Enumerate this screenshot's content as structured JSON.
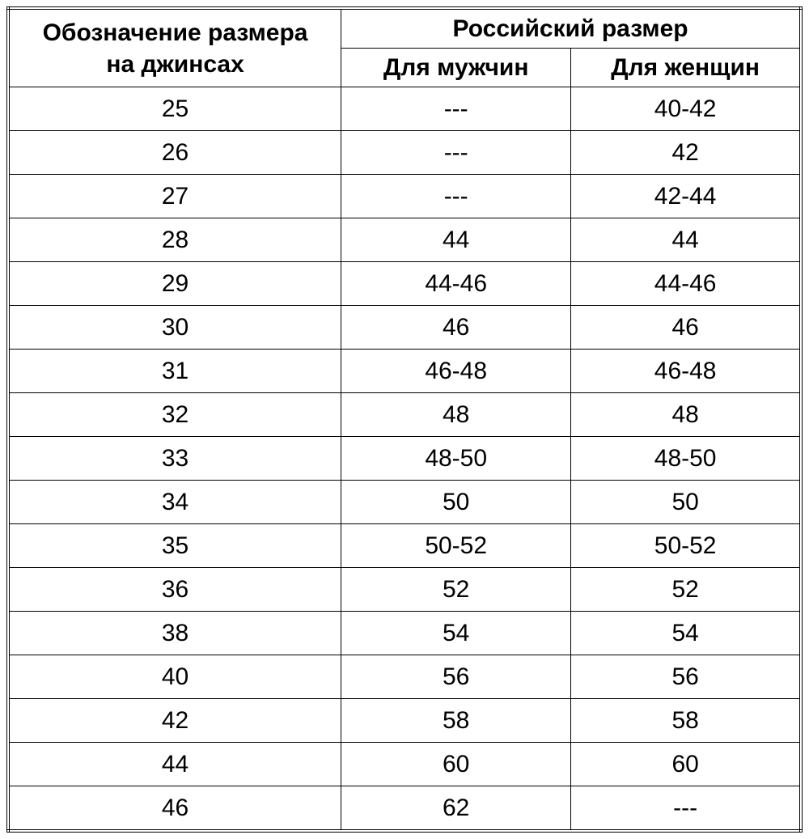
{
  "table": {
    "type": "table",
    "background_color": "#ffffff",
    "border_color": "#000000",
    "text_color": "#000000",
    "header_font_size_pt": 30,
    "cell_font_size_pt": 30,
    "font_family": "Comic Sans MS",
    "column_widths_percent": [
      42,
      29,
      29
    ],
    "text_align": "center",
    "headers": {
      "col1_line1": "Обозначение размера",
      "col1_line2": "на джинсах",
      "col_group": "Российский размер",
      "col2": "Для мужчин",
      "col3": "Для женщин"
    },
    "rows": [
      {
        "jeans": "25",
        "men": "---",
        "women": "40-42"
      },
      {
        "jeans": "26",
        "men": "---",
        "women": "42"
      },
      {
        "jeans": "27",
        "men": "---",
        "women": "42-44"
      },
      {
        "jeans": "28",
        "men": "44",
        "women": "44"
      },
      {
        "jeans": "29",
        "men": "44-46",
        "women": "44-46"
      },
      {
        "jeans": "30",
        "men": "46",
        "women": "46"
      },
      {
        "jeans": "31",
        "men": "46-48",
        "women": "46-48"
      },
      {
        "jeans": "32",
        "men": "48",
        "women": "48"
      },
      {
        "jeans": "33",
        "men": "48-50",
        "women": "48-50"
      },
      {
        "jeans": "34",
        "men": "50",
        "women": "50"
      },
      {
        "jeans": "35",
        "men": "50-52",
        "women": "50-52"
      },
      {
        "jeans": "36",
        "men": "52",
        "women": "52"
      },
      {
        "jeans": "38",
        "men": "54",
        "women": "54"
      },
      {
        "jeans": "40",
        "men": "56",
        "women": "56"
      },
      {
        "jeans": "42",
        "men": "58",
        "women": "58"
      },
      {
        "jeans": "44",
        "men": "60",
        "women": "60"
      },
      {
        "jeans": "46",
        "men": "62",
        "women": "---"
      }
    ]
  }
}
